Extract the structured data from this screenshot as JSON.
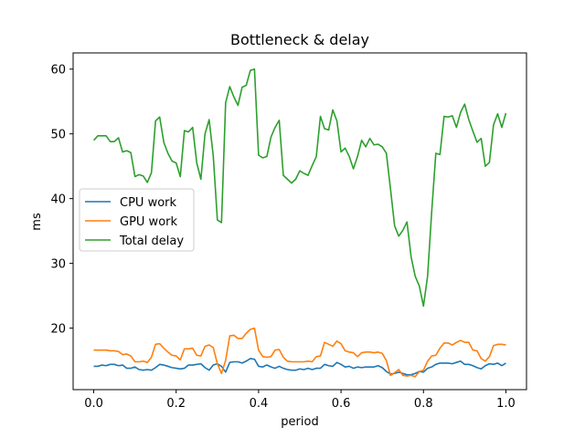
{
  "chart_data": {
    "type": "line",
    "title": "Bottleneck & delay",
    "xlabel": "period",
    "ylabel": "ms",
    "xlim": [
      -0.05,
      1.05
    ],
    "ylim": [
      10.5,
      62.5
    ],
    "xticks": [
      0.0,
      0.2,
      0.4,
      0.6,
      0.8,
      1.0
    ],
    "xtick_labels": [
      "0.0",
      "0.2",
      "0.4",
      "0.6",
      "0.8",
      "1.0"
    ],
    "yticks": [
      20,
      30,
      40,
      50,
      60
    ],
    "ytick_labels": [
      "20",
      "30",
      "40",
      "50",
      "60"
    ],
    "grid": false,
    "legend_position": "center-left",
    "x": [
      0.0,
      0.01,
      0.02,
      0.03,
      0.04,
      0.05,
      0.06,
      0.07,
      0.08,
      0.09,
      0.1,
      0.11,
      0.12,
      0.13,
      0.14,
      0.15,
      0.16,
      0.17,
      0.18,
      0.19,
      0.2,
      0.21,
      0.22,
      0.23,
      0.24,
      0.25,
      0.26,
      0.27,
      0.28,
      0.29,
      0.3,
      0.31,
      0.32,
      0.33,
      0.34,
      0.35,
      0.36,
      0.37,
      0.38,
      0.39,
      0.4,
      0.41,
      0.42,
      0.43,
      0.44,
      0.45,
      0.46,
      0.47,
      0.48,
      0.49,
      0.5,
      0.51,
      0.52,
      0.53,
      0.54,
      0.55,
      0.56,
      0.57,
      0.58,
      0.59,
      0.6,
      0.61,
      0.62,
      0.63,
      0.64,
      0.65,
      0.66,
      0.67,
      0.68,
      0.69,
      0.7,
      0.71,
      0.72,
      0.73,
      0.74,
      0.75,
      0.76,
      0.77,
      0.78,
      0.79,
      0.8,
      0.81,
      0.82,
      0.83,
      0.84,
      0.85,
      0.86,
      0.87,
      0.88,
      0.89,
      0.9,
      0.91,
      0.92,
      0.93,
      0.94,
      0.95,
      0.96,
      0.97,
      0.98,
      0.99,
      1.0
    ],
    "series": [
      {
        "name": "CPU work",
        "color": "#1f77b4",
        "values": [
          14.1,
          14.1,
          14.3,
          14.2,
          14.4,
          14.4,
          14.2,
          14.3,
          13.8,
          13.8,
          14.0,
          13.6,
          13.5,
          13.6,
          13.5,
          13.9,
          14.4,
          14.3,
          14.1,
          13.9,
          13.8,
          13.7,
          13.8,
          14.3,
          14.3,
          14.4,
          14.5,
          13.9,
          13.5,
          14.3,
          14.5,
          14.1,
          13.2,
          14.7,
          14.8,
          14.8,
          14.6,
          14.9,
          15.3,
          15.2,
          14.1,
          14.0,
          14.3,
          14.0,
          13.8,
          14.1,
          13.8,
          13.6,
          13.5,
          13.5,
          13.7,
          13.6,
          13.8,
          13.6,
          13.8,
          13.8,
          14.4,
          14.2,
          14.1,
          14.7,
          14.4,
          14.0,
          14.1,
          13.8,
          14.0,
          13.9,
          14.0,
          14.0,
          14.0,
          14.2,
          13.9,
          13.3,
          12.9,
          13.0,
          13.2,
          13.0,
          12.8,
          12.8,
          13.0,
          13.3,
          13.2,
          13.8,
          14.0,
          14.4,
          14.6,
          14.6,
          14.6,
          14.5,
          14.7,
          14.9,
          14.4,
          14.4,
          14.2,
          13.9,
          13.7,
          14.2,
          14.5,
          14.4,
          14.6,
          14.2,
          14.6
        ]
      },
      {
        "name": "GPU work",
        "color": "#ff7f0e",
        "values": [
          16.6,
          16.6,
          16.6,
          16.6,
          16.5,
          16.5,
          16.4,
          15.9,
          16.0,
          15.7,
          14.8,
          14.8,
          14.9,
          14.7,
          15.5,
          17.5,
          17.6,
          16.9,
          16.3,
          15.8,
          15.7,
          15.1,
          16.8,
          16.8,
          16.9,
          15.8,
          15.7,
          17.2,
          17.4,
          17.0,
          14.5,
          13.0,
          15.0,
          18.8,
          18.9,
          18.4,
          18.4,
          19.2,
          19.8,
          20.0,
          16.6,
          15.6,
          15.5,
          15.6,
          16.6,
          16.7,
          15.5,
          14.9,
          14.8,
          14.8,
          14.8,
          14.8,
          14.9,
          14.8,
          15.6,
          15.7,
          17.8,
          17.5,
          17.2,
          18.0,
          17.6,
          16.5,
          16.3,
          16.2,
          15.6,
          16.2,
          16.3,
          16.3,
          16.2,
          16.3,
          16.1,
          15.0,
          12.7,
          13.1,
          13.6,
          12.7,
          12.6,
          12.7,
          12.5,
          13.3,
          13.5,
          14.9,
          15.7,
          15.8,
          16.9,
          17.7,
          17.7,
          17.4,
          17.8,
          18.1,
          17.8,
          17.8,
          16.6,
          16.5,
          15.3,
          14.9,
          15.6,
          17.3,
          17.5,
          17.5,
          17.4
        ]
      },
      {
        "name": "Total delay",
        "color": "#2ca02c",
        "values": [
          49.0,
          49.7,
          49.7,
          49.7,
          48.8,
          48.8,
          49.4,
          47.2,
          47.4,
          47.1,
          43.4,
          43.7,
          43.5,
          42.5,
          44.0,
          52.0,
          52.6,
          48.7,
          47.0,
          45.8,
          45.5,
          43.4,
          50.5,
          50.3,
          51.0,
          45.5,
          43.0,
          50.0,
          52.2,
          46.6,
          36.7,
          36.3,
          54.8,
          57.3,
          55.7,
          54.4,
          57.2,
          57.5,
          59.8,
          60.0,
          46.7,
          46.3,
          46.5,
          49.5,
          51.0,
          52.1,
          43.6,
          43.0,
          42.4,
          43.0,
          44.3,
          43.9,
          43.6,
          45.1,
          46.5,
          52.7,
          50.8,
          50.6,
          53.7,
          52.0,
          47.2,
          47.8,
          46.5,
          44.6,
          46.5,
          49.0,
          48.0,
          49.3,
          48.3,
          48.4,
          48.0,
          47.0,
          41.5,
          35.8,
          34.2,
          35.1,
          36.4,
          31.0,
          28.0,
          26.5,
          23.4,
          28.0,
          38.0,
          47.0,
          46.8,
          52.7,
          52.6,
          52.8,
          51.0,
          53.3,
          54.6,
          52.2,
          50.4,
          48.7,
          49.3,
          45.0,
          45.6,
          51.4,
          53.1,
          51.0,
          53.2
        ]
      }
    ]
  }
}
